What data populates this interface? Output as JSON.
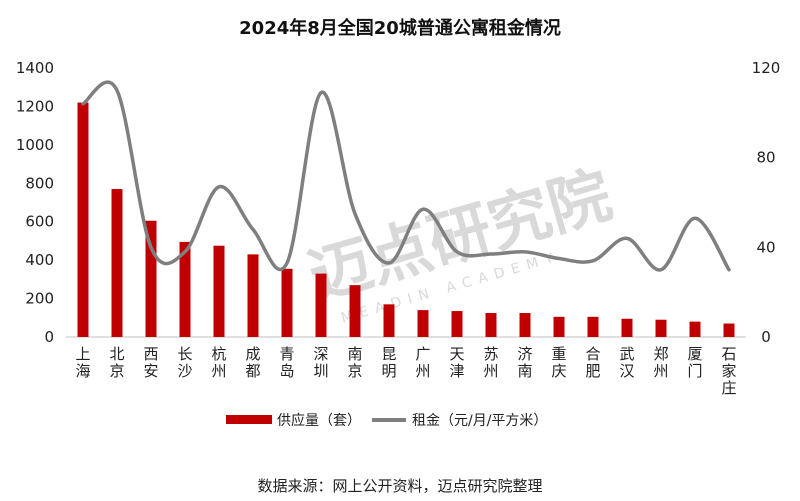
{
  "chart_data": {
    "type": "bar-line",
    "title": "2024年8月全国20城普通公寓租金情况",
    "categories": [
      "上海",
      "北京",
      "西安",
      "长沙",
      "杭州",
      "成都",
      "青岛",
      "深圳",
      "南京",
      "昆明",
      "广州",
      "天津",
      "苏州",
      "济南",
      "重庆",
      "合肥",
      "武汉",
      "郑州",
      "厦门",
      "石家庄"
    ],
    "series": [
      {
        "name": "供应量（套）",
        "type": "bar",
        "axis": "left",
        "color": "#c00000",
        "values": [
          1220,
          770,
          605,
          495,
          475,
          430,
          355,
          330,
          270,
          170,
          140,
          135,
          125,
          125,
          105,
          105,
          95,
          90,
          80,
          70
        ]
      },
      {
        "name": "租金（元/月/平方米）",
        "type": "line",
        "axis": "right",
        "color": "#7f7f7f",
        "values": [
          104,
          110,
          40,
          38,
          67,
          48,
          33,
          109,
          55,
          33,
          57,
          38,
          37,
          38,
          35,
          34,
          44,
          30,
          53,
          30
        ]
      }
    ],
    "y_left": {
      "min": 0,
      "max": 1400,
      "ticks": [
        0,
        200,
        400,
        600,
        800,
        1000,
        1200,
        1400
      ]
    },
    "y_right": {
      "min": 0,
      "max": 120,
      "ticks": [
        0,
        40,
        80,
        120
      ]
    },
    "legend_position": "bottom",
    "grid": false
  },
  "watermark": {
    "text": "迈点研究院",
    "subtext": "MEADIN ACADEMY"
  },
  "source": "数据来源：网上公开资料，迈点研究院整理"
}
